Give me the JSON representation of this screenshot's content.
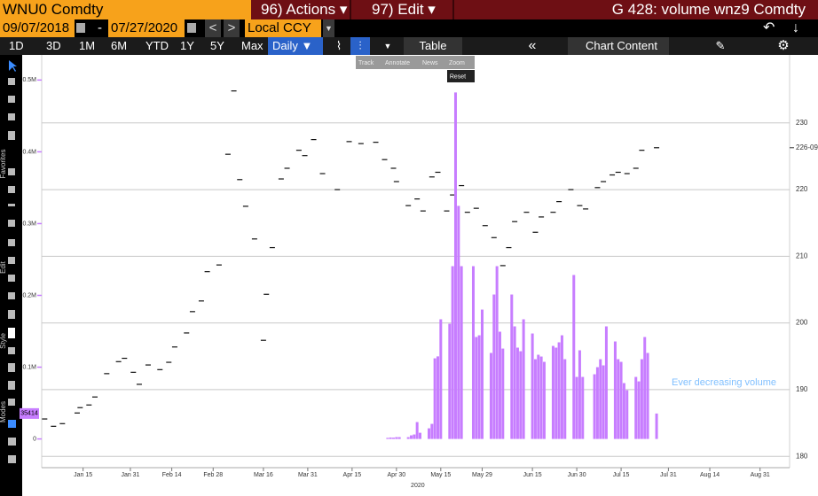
{
  "header": {
    "security": "WNU0 Comdty",
    "actions": "96) Actions ▾",
    "edit": "97) Edit ▾",
    "title": "G 428: volume wnz9 Comdty"
  },
  "dates": {
    "start": "09/07/2018",
    "separator": "-",
    "end": "07/27/2020",
    "currency": "Local CCY"
  },
  "toolbar": {
    "ranges": [
      "1D",
      "3D",
      "1M",
      "6M",
      "YTD",
      "1Y",
      "5Y",
      "Max"
    ],
    "frequency": "Daily ▼",
    "table": "Table",
    "chart_content": "Chart Content"
  },
  "side_labels": [
    "Favorites",
    "Edit",
    "Style",
    "Modes"
  ],
  "popup": {
    "tools": [
      "Track",
      "Annotate",
      "News",
      "Zoom"
    ],
    "reset": "Reset"
  },
  "chart_data": {
    "type": "bar",
    "xlim": [
      "2020-01-01",
      "2020-09-10"
    ],
    "xticks": [
      {
        "value": "2020-01-15",
        "label": "Jan 15"
      },
      {
        "value": "2020-01-31",
        "label": "Jan 31"
      },
      {
        "value": "2020-02-14",
        "label": "Feb 14"
      },
      {
        "value": "2020-02-28",
        "label": "Feb 28"
      },
      {
        "value": "2020-03-16",
        "label": "Mar 16"
      },
      {
        "value": "2020-03-31",
        "label": "Mar 31"
      },
      {
        "value": "2020-04-15",
        "label": "Apr 15"
      },
      {
        "value": "2020-04-30",
        "label": "Apr 30"
      },
      {
        "value": "2020-05-15",
        "label": "May 15"
      },
      {
        "value": "2020-05-29",
        "label": "May 29"
      },
      {
        "value": "2020-06-15",
        "label": "Jun 15"
      },
      {
        "value": "2020-06-30",
        "label": "Jun 30"
      },
      {
        "value": "2020-07-15",
        "label": "Jul 15"
      },
      {
        "value": "2020-07-31",
        "label": "Jul 31"
      },
      {
        "value": "2020-08-14",
        "label": "Aug 14"
      },
      {
        "value": "2020-08-31",
        "label": "Aug 31"
      }
    ],
    "x_year": "2020",
    "ylim": [
      -40000,
      535000
    ],
    "yticks": [
      0,
      {
        "value": 100000,
        "label": "0.1M"
      },
      {
        "value": 200000,
        "label": "0.2M"
      },
      {
        "value": 300000,
        "label": "0.3M"
      },
      {
        "value": 400000,
        "label": "0.4M"
      },
      {
        "value": 500000,
        "label": "0.5M"
      }
    ],
    "y2lim": [
      178.3,
      240.2
    ],
    "y2ticks": [
      180,
      190,
      200,
      210,
      220,
      230
    ],
    "grid": true,
    "annotation": "Ever decreasing volume",
    "price_label": {
      "value": 226.28125,
      "label": "226-09"
    },
    "series": [
      {
        "type": "dash",
        "axis": "y2",
        "color": "#111111",
        "x": [
          "2020-01-02",
          "2020-01-05",
          "2020-01-08",
          "2020-01-13",
          "2020-01-14",
          "2020-01-17",
          "2020-01-19",
          "2020-01-23",
          "2020-01-27",
          "2020-01-29",
          "2020-02-01",
          "2020-02-03",
          "2020-02-06",
          "2020-02-10",
          "2020-02-13",
          "2020-02-15",
          "2020-02-19",
          "2020-02-21",
          "2020-02-24",
          "2020-02-26",
          "2020-03-01",
          "2020-03-04",
          "2020-03-06",
          "2020-03-08",
          "2020-03-10",
          "2020-03-13",
          "2020-03-16",
          "2020-03-17",
          "2020-03-19",
          "2020-03-22",
          "2020-03-24",
          "2020-03-28",
          "2020-03-30",
          "2020-04-02",
          "2020-04-05",
          "2020-04-10",
          "2020-04-14",
          "2020-04-18",
          "2020-04-23",
          "2020-04-26",
          "2020-04-29",
          "2020-04-30",
          "2020-05-04",
          "2020-05-07",
          "2020-05-09",
          "2020-05-12",
          "2020-05-14",
          "2020-05-17",
          "2020-05-19",
          "2020-05-22",
          "2020-05-24",
          "2020-05-27",
          "2020-05-30",
          "2020-06-02",
          "2020-06-05",
          "2020-06-07",
          "2020-06-09",
          "2020-06-13",
          "2020-06-16",
          "2020-06-18",
          "2020-06-22",
          "2020-06-24",
          "2020-06-28",
          "2020-07-01",
          "2020-07-03",
          "2020-07-07",
          "2020-07-09",
          "2020-07-12",
          "2020-07-14",
          "2020-07-17",
          "2020-07-20",
          "2020-07-22",
          "2020-07-27"
        ],
        "values": [
          185.6,
          184.5,
          184.9,
          186.5,
          187.3,
          187.7,
          188.9,
          192.4,
          194.2,
          194.7,
          192.6,
          190.8,
          193.7,
          193.0,
          194.1,
          196.4,
          198.5,
          201.7,
          203.3,
          207.7,
          208.7,
          225.3,
          234.8,
          221.5,
          217.5,
          212.6,
          197.4,
          204.3,
          211.3,
          221.6,
          223.2,
          225.9,
          225.1,
          227.5,
          222.4,
          220.0,
          227.2,
          226.9,
          227.1,
          224.5,
          223.2,
          221.2,
          217.6,
          218.6,
          216.8,
          221.9,
          222.6,
          216.8,
          219.2,
          220.6,
          216.6,
          217.2,
          214.6,
          212.8,
          208.6,
          211.3,
          215.2,
          216.6,
          213.6,
          215.9,
          216.6,
          218.2,
          220.0,
          217.6,
          217.1,
          220.3,
          221.2,
          222.2,
          222.6,
          222.4,
          223.2,
          225.9,
          226.28125
        ]
      },
      {
        "type": "bar",
        "color": "#c77dff",
        "x": [
          "2020-04-27",
          "2020-04-28",
          "2020-04-29",
          "2020-04-30",
          "2020-05-01",
          "2020-05-04",
          "2020-05-05",
          "2020-05-06",
          "2020-05-07",
          "2020-05-08",
          "2020-05-11",
          "2020-05-12",
          "2020-05-13",
          "2020-05-14",
          "2020-05-15",
          "2020-05-18",
          "2020-05-19",
          "2020-05-20",
          "2020-05-21",
          "2020-05-22",
          "2020-05-26",
          "2020-05-27",
          "2020-05-28",
          "2020-05-29",
          "2020-06-01",
          "2020-06-02",
          "2020-06-03",
          "2020-06-04",
          "2020-06-05",
          "2020-06-08",
          "2020-06-09",
          "2020-06-10",
          "2020-06-11",
          "2020-06-12",
          "2020-06-15",
          "2020-06-16",
          "2020-06-17",
          "2020-06-18",
          "2020-06-19",
          "2020-06-22",
          "2020-06-23",
          "2020-06-24",
          "2020-06-25",
          "2020-06-26",
          "2020-06-29",
          "2020-06-30",
          "2020-07-01",
          "2020-07-02",
          "2020-07-06",
          "2020-07-07",
          "2020-07-08",
          "2020-07-09",
          "2020-07-10",
          "2020-07-13",
          "2020-07-14",
          "2020-07-15",
          "2020-07-16",
          "2020-07-17",
          "2020-07-20",
          "2020-07-21",
          "2020-07-22",
          "2020-07-23",
          "2020-07-24",
          "2020-07-27"
        ],
        "values": [
          1500,
          2000,
          1800,
          2500,
          2500,
          2500,
          5000,
          6200,
          23500,
          8600,
          14800,
          21000,
          112300,
          115000,
          166700,
          160500,
          240700,
          482700,
          324700,
          240700,
          240700,
          142000,
          144400,
          180200,
          119800,
          201200,
          240700,
          149400,
          125900,
          201200,
          156800,
          127200,
          122200,
          166700,
          146900,
          111100,
          117300,
          114800,
          107400,
          129600,
          127200,
          134600,
          144400,
          111100,
          228400,
          86400,
          123500,
          86400,
          90100,
          100000,
          111100,
          102500,
          156800,
          135800,
          111100,
          107400,
          77800,
          67900,
          86400,
          80200,
          111100,
          142000,
          119800,
          35414
        ]
      }
    ]
  }
}
